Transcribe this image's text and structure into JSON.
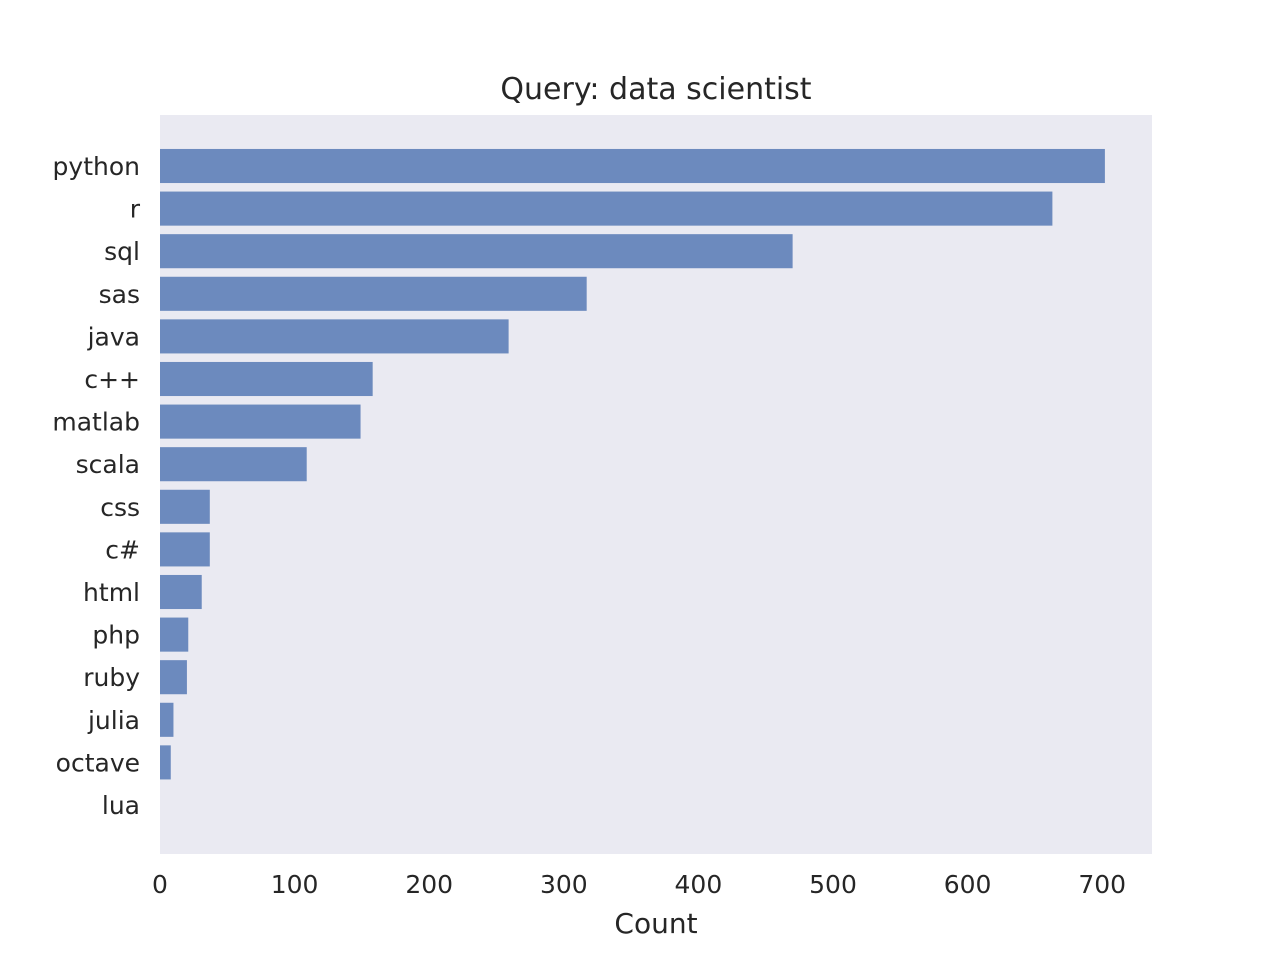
{
  "chart_data": {
    "type": "bar",
    "orientation": "horizontal",
    "title": "Query: data scientist",
    "xlabel": "Count",
    "ylabel": "",
    "categories": [
      "python",
      "r",
      "sql",
      "sas",
      "java",
      "c++",
      "matlab",
      "scala",
      "css",
      "c#",
      "html",
      "php",
      "ruby",
      "julia",
      "octave",
      "lua"
    ],
    "values": [
      702,
      663,
      470,
      317,
      259,
      158,
      149,
      109,
      37,
      37,
      31,
      21,
      20,
      10,
      8,
      0
    ],
    "x_ticks": [
      "0",
      "100",
      "200",
      "300",
      "400",
      "500",
      "600",
      "700"
    ],
    "xlim": [
      0,
      737
    ],
    "grid": false,
    "legend": "none",
    "colors": {
      "bar": "#4c72b0",
      "plot_background": "#eaeaf2",
      "text": "#262626"
    }
  }
}
